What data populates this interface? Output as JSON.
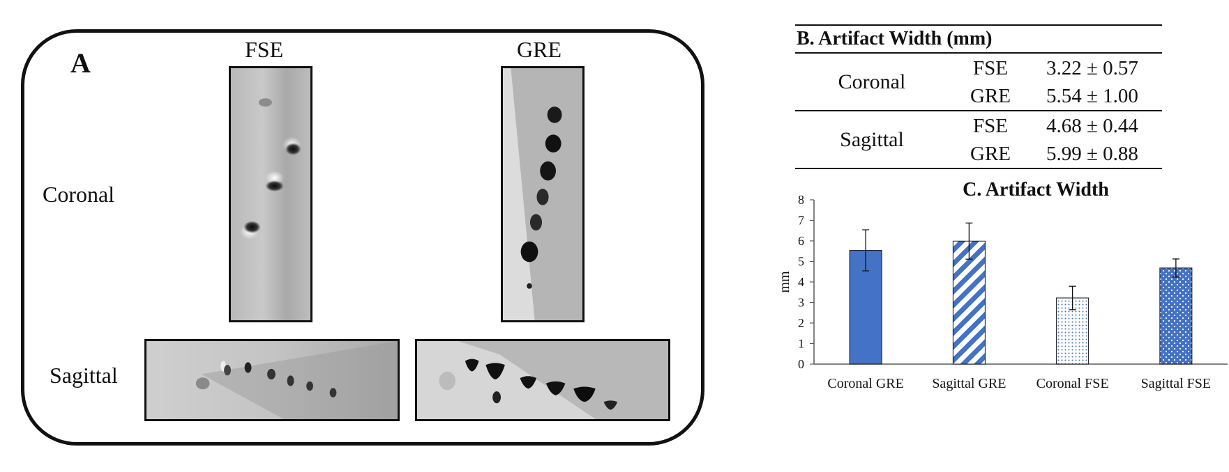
{
  "panel_a": {
    "letter": "A",
    "columns": [
      "FSE",
      "GRE"
    ],
    "rows": [
      "Coronal",
      "Sagittal"
    ]
  },
  "table_b": {
    "title": "B. Artifact Width (mm)",
    "groups": [
      {
        "plane": "Coronal",
        "rows": [
          {
            "seq": "FSE",
            "value": "3.22 ± 0.57"
          },
          {
            "seq": "GRE",
            "value": "5.54 ± 1.00"
          }
        ]
      },
      {
        "plane": "Sagittal",
        "rows": [
          {
            "seq": "FSE",
            "value": "4.68 ± 0.44"
          },
          {
            "seq": "GRE",
            "value": "5.99 ± 0.88"
          }
        ]
      }
    ]
  },
  "colors": {
    "bar_fill": "#4472c4",
    "bar_outline": "#1f3864",
    "axis": "#595959"
  },
  "chart_data": {
    "type": "bar",
    "title": "C. Artifact Width",
    "ylabel": "mm",
    "xlabel": "",
    "ylim": [
      0,
      8
    ],
    "yticks": [
      0,
      1,
      2,
      3,
      4,
      5,
      6,
      7,
      8
    ],
    "categories": [
      "Coronal GRE",
      "Sagittal GRE",
      "Coronal FSE",
      "Sagittal FSE"
    ],
    "values": [
      5.54,
      5.99,
      3.22,
      4.68
    ],
    "errors": [
      1.0,
      0.88,
      0.57,
      0.44
    ],
    "patterns": [
      "solid",
      "diagonal-stripes",
      "fine-dots",
      "white-dots"
    ],
    "grid": false
  }
}
